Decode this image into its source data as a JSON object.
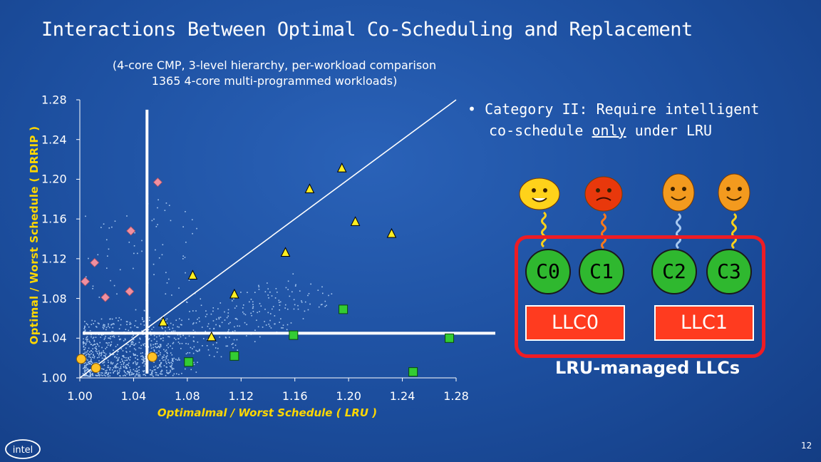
{
  "slide": {
    "title": "Interactions Between Optimal Co-Scheduling and Replacement",
    "subtitle_line1": "(4-core CMP, 3-level hierarchy, per-workload comparison",
    "subtitle_line2": "1365 4-core multi-programmed workloads)",
    "bullet_symbol": "•",
    "bullet_line1": "Category II:  Require intelligent",
    "bullet_line2_pre": "co-schedule ",
    "bullet_line2_u": "only",
    "bullet_line2_post": " under LRU",
    "page_number": "12",
    "logo_text": "intel"
  },
  "diagram": {
    "cores": [
      "C0",
      "C1",
      "C2",
      "C3"
    ],
    "llcs": [
      "LLC0",
      "LLC1"
    ],
    "caption": "LRU-managed LLCs",
    "face_icons": [
      "laughing-face-icon",
      "angry-face-icon",
      "smiling-face-icon",
      "smiling-face-icon"
    ]
  },
  "colors": {
    "background": "#1c4e9e",
    "axis_label": "#ffd700",
    "scatter_cloud": "#a9c9f0",
    "diamond": "#f08fa0",
    "triangle": "#ffee22",
    "square": "#33cc33",
    "circle": "#ffc125",
    "core": "#2fb82f",
    "llc": "#ff3b1f",
    "cmp_border": "#ee1c24"
  },
  "chart_data": {
    "type": "scatter",
    "xlabel": "Optimalmal / Worst Schedule ( LRU )",
    "ylabel": "Optimal / Worst Schedule ( DRRIP )",
    "xlim": [
      1.0,
      1.28
    ],
    "ylim": [
      1.0,
      1.28
    ],
    "xticks": [
      1.0,
      1.04,
      1.08,
      1.12,
      1.16,
      1.2,
      1.24,
      1.28
    ],
    "yticks": [
      1.0,
      1.04,
      1.08,
      1.12,
      1.16,
      1.2,
      1.24,
      1.28
    ],
    "tick_labels": [
      "1.00",
      "1.04",
      "1.08",
      "1.12",
      "1.16",
      "1.20",
      "1.24",
      "1.28"
    ],
    "diagonal": [
      [
        1.0,
        1.0
      ],
      [
        1.28,
        1.28
      ]
    ],
    "threshold_x": 1.05,
    "threshold_y": 1.045,
    "highlighted_series": [
      {
        "shape": "diamond",
        "points": [
          [
            1.004,
            1.097
          ],
          [
            1.011,
            1.116
          ],
          [
            1.019,
            1.081
          ],
          [
            1.037,
            1.087
          ],
          [
            1.038,
            1.148
          ],
          [
            1.058,
            1.197
          ]
        ]
      },
      {
        "shape": "triangle",
        "points": [
          [
            1.062,
            1.056
          ],
          [
            1.084,
            1.103
          ],
          [
            1.098,
            1.041
          ],
          [
            1.115,
            1.084
          ],
          [
            1.153,
            1.126
          ],
          [
            1.171,
            1.19
          ],
          [
            1.195,
            1.211
          ],
          [
            1.205,
            1.157
          ],
          [
            1.232,
            1.145
          ]
        ]
      },
      {
        "shape": "square",
        "points": [
          [
            1.081,
            1.016
          ],
          [
            1.115,
            1.022
          ],
          [
            1.159,
            1.043
          ],
          [
            1.196,
            1.069
          ],
          [
            1.248,
            1.006
          ],
          [
            1.275,
            1.04
          ]
        ]
      },
      {
        "shape": "circle",
        "points": [
          [
            1.001,
            1.019
          ],
          [
            1.012,
            1.01
          ],
          [
            1.054,
            1.021
          ]
        ]
      }
    ],
    "cloud": {
      "count": 1350,
      "description": "dense cloud concentrated near (1.00-1.06, 1.00-1.06), thinning toward the diagonal"
    }
  }
}
